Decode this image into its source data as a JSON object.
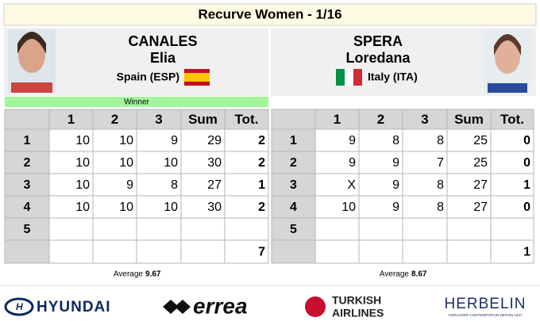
{
  "title": "Recurve Women - 1/16",
  "winner_label": "Winner",
  "average_label": "Average",
  "columns": [
    "1",
    "2",
    "3",
    "Sum",
    "Tot."
  ],
  "row_labels": [
    "1",
    "2",
    "3",
    "4",
    "5"
  ],
  "athletes": [
    {
      "surname": "CANALES",
      "given_name": "Elia",
      "country": "Spain (ESP)",
      "ends": [
        [
          10,
          10,
          9,
          29,
          2
        ],
        [
          10,
          10,
          10,
          30,
          2
        ],
        [
          10,
          9,
          8,
          27,
          1
        ],
        [
          10,
          10,
          10,
          30,
          2
        ],
        [
          null,
          null,
          null,
          null,
          null
        ]
      ],
      "total": 7,
      "average": "9.67"
    },
    {
      "surname": "SPERA",
      "given_name": "Loredana",
      "country": "Italy (ITA)",
      "ends": [
        [
          9,
          8,
          8,
          25,
          0
        ],
        [
          9,
          9,
          7,
          25,
          0
        ],
        [
          "X",
          9,
          8,
          27,
          1
        ],
        [
          10,
          9,
          8,
          27,
          0
        ],
        [
          null,
          null,
          null,
          null,
          null
        ]
      ],
      "total": 1,
      "average": "8.67"
    }
  ],
  "sponsors": {
    "hyundai": "HYUNDAI",
    "errea": "errea",
    "turkish_airlines": [
      "TURKISH",
      "AIRLINES"
    ],
    "herbelin": "HERBELIN",
    "herbelin_tagline": "HORLOGER CONTEMPORAIN DEPUIS 1947"
  }
}
